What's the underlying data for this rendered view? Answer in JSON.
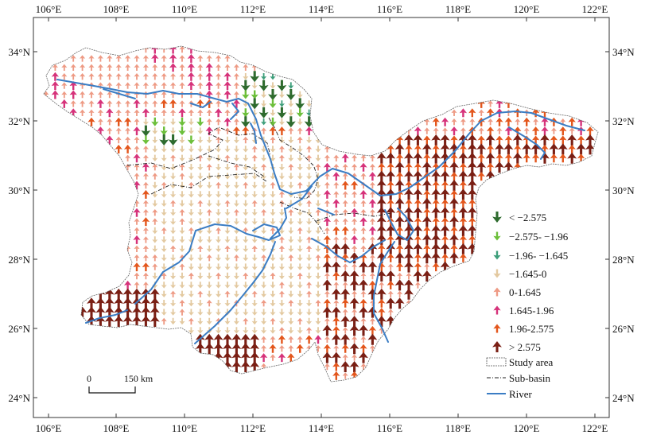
{
  "axes": {
    "top": [
      "106°E",
      "108°E",
      "110°E",
      "112°E",
      "114°E",
      "116°E",
      "118°E",
      "120°E",
      "122°E"
    ],
    "bottom": [
      "106°E",
      "108°E",
      "110°E",
      "112°E",
      "114°E",
      "116°E",
      "118°E",
      "120°E",
      "122°E"
    ],
    "left": [
      "34°N",
      "32°N",
      "30°N",
      "28°N",
      "26°N",
      "24°N"
    ],
    "right": [
      "34°N",
      "32°N",
      "30°N",
      "28°N",
      "26°N",
      "24°N"
    ]
  },
  "legend": {
    "classes": [
      {
        "label": "< −2.575",
        "color": "#2e6b2e",
        "direction": "down",
        "size": "large"
      },
      {
        "label": "−2.575- −1.96",
        "color": "#6cbf3a",
        "direction": "down",
        "size": "medium"
      },
      {
        "label": "−1.96- −1.645",
        "color": "#3d9e7a",
        "direction": "down",
        "size": "small"
      },
      {
        "label": "−1.645-0",
        "color": "#e3c9a0",
        "direction": "down",
        "size": "small"
      },
      {
        "label": "0-1.645",
        "color": "#ee9a84",
        "direction": "up",
        "size": "small"
      },
      {
        "label": "1.645-1.96",
        "color": "#d6327a",
        "direction": "up",
        "size": "medium"
      },
      {
        "label": "1.96-2.575",
        "color": "#e3561c",
        "direction": "up",
        "size": "medium"
      },
      {
        "label": "> 2.575",
        "color": "#7a1f14",
        "direction": "up",
        "size": "large"
      }
    ],
    "study_area": "Study area",
    "sub_basin": "Sub-basin",
    "river": "River"
  },
  "scale_bar": {
    "start": "0",
    "end": "150 km"
  },
  "colors": {
    "river": "#3b7dc4",
    "boundary": "#666666",
    "subbasin": "#222222"
  }
}
